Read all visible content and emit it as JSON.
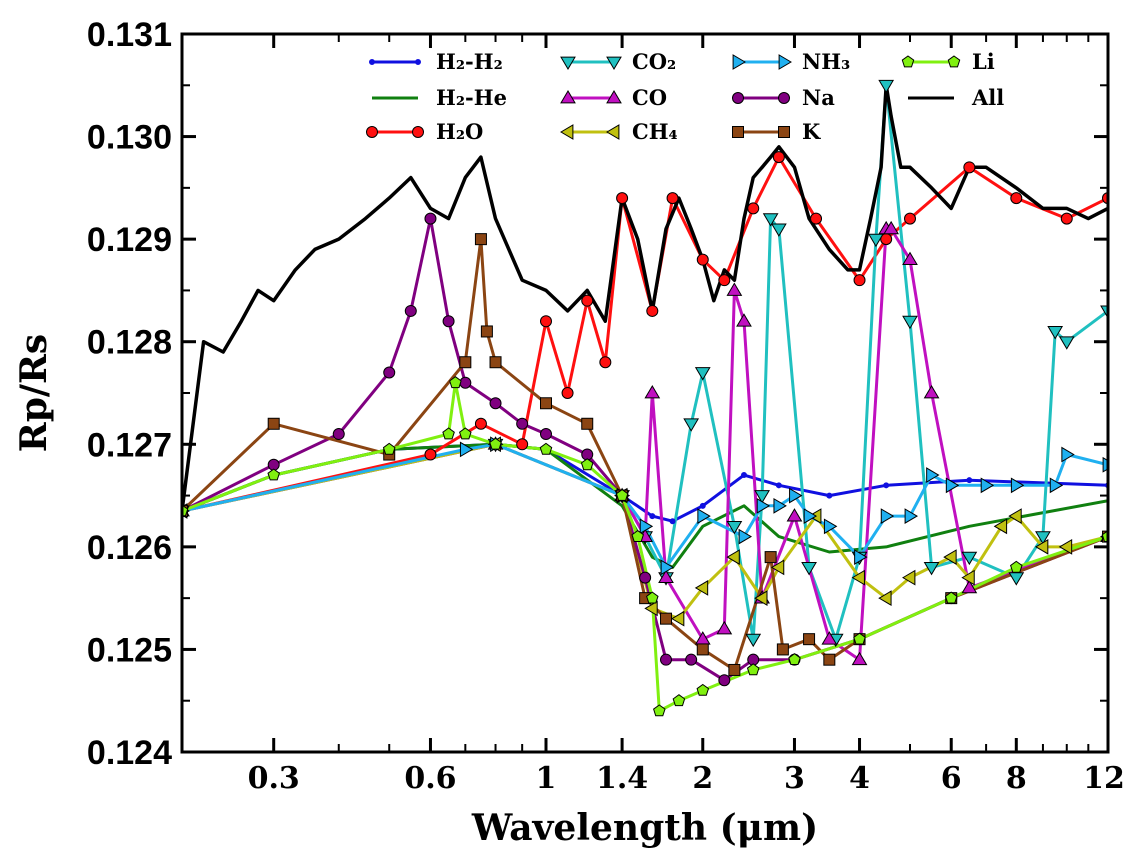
{
  "chart_data": {
    "type": "line",
    "title": "",
    "xlabel": "Wavelength (μm)",
    "ylabel": "Rp/Rs",
    "xscale": "log",
    "xlim": [
      0.2,
      12
    ],
    "ylim": [
      0.124,
      0.131
    ],
    "xticks": [
      {
        "value": 0.3,
        "label": "0.3"
      },
      {
        "value": 0.6,
        "label": "0.6"
      },
      {
        "value": 1,
        "label": "1"
      },
      {
        "value": 1.4,
        "label": "1.4"
      },
      {
        "value": 2,
        "label": "2"
      },
      {
        "value": 3,
        "label": "3"
      },
      {
        "value": 4,
        "label": "4"
      },
      {
        "value": 6,
        "label": "6"
      },
      {
        "value": 8,
        "label": "8"
      },
      {
        "value": 12,
        "label": "12"
      }
    ],
    "yticks": [
      {
        "value": 0.124,
        "label": "0.124"
      },
      {
        "value": 0.125,
        "label": "0.125"
      },
      {
        "value": 0.126,
        "label": "0.126"
      },
      {
        "value": 0.127,
        "label": "0.127"
      },
      {
        "value": 0.128,
        "label": "0.128"
      },
      {
        "value": 0.129,
        "label": "0.129"
      },
      {
        "value": 0.13,
        "label": "0.130"
      },
      {
        "value": 0.131,
        "label": "0.131"
      }
    ],
    "legend_position": "top",
    "series": [
      {
        "name": "H2-H2",
        "label": "H₂-H₂",
        "color": "#1010e0",
        "marker": "dot",
        "x": [
          0.2,
          0.3,
          0.5,
          0.8,
          1.0,
          1.4,
          1.6,
          1.75,
          2.0,
          2.4,
          2.8,
          3.5,
          4.5,
          6.5,
          12
        ],
        "y": [
          0.12635,
          0.1267,
          0.12695,
          0.127,
          0.12695,
          0.1265,
          0.1263,
          0.12625,
          0.1264,
          0.1267,
          0.1266,
          0.1265,
          0.1266,
          0.12665,
          0.1266
        ]
      },
      {
        "name": "H2-He",
        "label": "H₂-He",
        "color": "#108010",
        "marker": "none",
        "x": [
          0.2,
          0.3,
          0.5,
          0.8,
          1.0,
          1.4,
          1.6,
          1.75,
          2.0,
          2.4,
          2.8,
          3.5,
          4.5,
          6.5,
          12
        ],
        "y": [
          0.12635,
          0.1267,
          0.12695,
          0.127,
          0.12695,
          0.1264,
          0.1259,
          0.1258,
          0.1262,
          0.1264,
          0.1261,
          0.12595,
          0.126,
          0.1262,
          0.12645
        ]
      },
      {
        "name": "H2O",
        "label": "H₂O",
        "color": "#ff1010",
        "marker": "circle",
        "x": [
          0.2,
          0.6,
          0.75,
          0.9,
          1.0,
          1.1,
          1.2,
          1.3,
          1.4,
          1.6,
          1.75,
          2.0,
          2.2,
          2.5,
          2.8,
          3.3,
          4.0,
          4.5,
          5.0,
          6.5,
          8.0,
          10.0,
          12.0
        ],
        "y": [
          0.12635,
          0.1269,
          0.1272,
          0.127,
          0.1282,
          0.1275,
          0.1284,
          0.1278,
          0.1294,
          0.1283,
          0.1294,
          0.1288,
          0.1286,
          0.1293,
          0.1298,
          0.1292,
          0.1286,
          0.129,
          0.1292,
          0.1297,
          0.1294,
          0.1292,
          0.1294
        ]
      },
      {
        "name": "CO2",
        "label": "CO₂",
        "color": "#20c0c0",
        "marker": "tri-down",
        "x": [
          0.2,
          0.8,
          1.4,
          1.55,
          1.7,
          1.9,
          2.0,
          2.3,
          2.5,
          2.6,
          2.7,
          2.8,
          3.2,
          3.6,
          4.0,
          4.3,
          4.5,
          5.0,
          5.5,
          6.5,
          8.0,
          9.0,
          9.5,
          10,
          12
        ],
        "y": [
          0.12635,
          0.127,
          0.1265,
          0.1261,
          0.1257,
          0.1272,
          0.1277,
          0.1262,
          0.1251,
          0.1265,
          0.1292,
          0.1291,
          0.1258,
          0.1251,
          0.1259,
          0.129,
          0.1305,
          0.1282,
          0.1258,
          0.1259,
          0.1257,
          0.1261,
          0.1281,
          0.128,
          0.1283
        ]
      },
      {
        "name": "CO",
        "label": "CO",
        "color": "#c010c0",
        "marker": "tri-up",
        "x": [
          0.2,
          0.8,
          1.4,
          1.55,
          1.6,
          1.7,
          2.0,
          2.2,
          2.3,
          2.4,
          2.6,
          3.0,
          3.5,
          4.0,
          4.5,
          4.6,
          5.0,
          5.5,
          6.5,
          12
        ],
        "y": [
          0.12635,
          0.127,
          0.1265,
          0.1261,
          0.1275,
          0.1257,
          0.1251,
          0.1252,
          0.1285,
          0.1282,
          0.1255,
          0.1263,
          0.1251,
          0.1249,
          0.1291,
          0.1291,
          0.1288,
          0.1275,
          0.1256,
          0.1261
        ]
      },
      {
        "name": "CH4",
        "label": "CH₄",
        "color": "#c0c010",
        "marker": "tri-left",
        "x": [
          0.2,
          0.8,
          1.4,
          1.6,
          1.8,
          2.0,
          2.3,
          2.6,
          2.8,
          3.3,
          4.0,
          4.5,
          5.0,
          6.0,
          6.5,
          7.5,
          8.0,
          9.0,
          10.0,
          12.0
        ],
        "y": [
          0.12635,
          0.127,
          0.1265,
          0.1254,
          0.1253,
          0.1256,
          0.1259,
          0.1255,
          0.1258,
          0.1263,
          0.1257,
          0.1255,
          0.1257,
          0.1259,
          0.1257,
          0.1262,
          0.1263,
          0.126,
          0.126,
          0.1261
        ]
      },
      {
        "name": "NH3",
        "label": "NH₃",
        "color": "#20b0f0",
        "marker": "tri-right",
        "x": [
          0.2,
          0.7,
          0.8,
          1.4,
          1.55,
          1.7,
          2.0,
          2.4,
          2.6,
          2.8,
          3.0,
          3.2,
          3.5,
          4.0,
          4.5,
          5.0,
          5.5,
          6.0,
          7.0,
          8.0,
          9.5,
          10.0,
          12.0
        ],
        "y": [
          0.12635,
          0.12695,
          0.127,
          0.1265,
          0.1262,
          0.1258,
          0.1263,
          0.1261,
          0.1264,
          0.1264,
          0.1265,
          0.1263,
          0.1262,
          0.1259,
          0.1263,
          0.1263,
          0.1267,
          0.1266,
          0.1266,
          0.1266,
          0.1266,
          0.1269,
          0.1268
        ]
      },
      {
        "name": "Na",
        "label": "Na",
        "color": "#800080",
        "marker": "circle",
        "x": [
          0.2,
          0.3,
          0.4,
          0.5,
          0.55,
          0.6,
          0.65,
          0.7,
          0.8,
          0.9,
          1.0,
          1.2,
          1.4,
          1.55,
          1.7,
          1.9,
          2.2,
          2.5,
          3.0,
          4.0,
          6.0,
          12.0
        ],
        "y": [
          0.12635,
          0.1268,
          0.1271,
          0.1277,
          0.1283,
          0.1292,
          0.1282,
          0.1276,
          0.1274,
          0.1272,
          0.1271,
          0.1269,
          0.1265,
          0.1257,
          0.1249,
          0.1249,
          0.1247,
          0.1249,
          0.1249,
          0.1251,
          0.1255,
          0.1261
        ]
      },
      {
        "name": "K",
        "label": "K",
        "color": "#8b4513",
        "marker": "square",
        "x": [
          0.2,
          0.3,
          0.5,
          0.7,
          0.75,
          0.77,
          0.8,
          1.0,
          1.2,
          1.4,
          1.55,
          1.7,
          2.0,
          2.3,
          2.7,
          2.85,
          3.2,
          3.5,
          4.0,
          6.0,
          12.0
        ],
        "y": [
          0.12635,
          0.1272,
          0.1269,
          0.1278,
          0.129,
          0.1281,
          0.1278,
          0.1274,
          0.1272,
          0.1265,
          0.1255,
          0.1253,
          0.125,
          0.1248,
          0.1259,
          0.125,
          0.1251,
          0.1249,
          0.1251,
          0.1255,
          0.1261
        ]
      },
      {
        "name": "Li",
        "label": "Li",
        "color": "#80f010",
        "marker": "pentagon",
        "x": [
          0.2,
          0.3,
          0.5,
          0.65,
          0.67,
          0.7,
          0.8,
          1.0,
          1.2,
          1.4,
          1.5,
          1.6,
          1.65,
          1.8,
          2.0,
          2.5,
          3.0,
          4.0,
          6.0,
          8.0,
          12.0
        ],
        "y": [
          0.12635,
          0.1267,
          0.12695,
          0.1271,
          0.1276,
          0.1271,
          0.127,
          0.12695,
          0.1268,
          0.1265,
          0.1261,
          0.1255,
          0.1244,
          0.1245,
          0.1246,
          0.1248,
          0.1249,
          0.1251,
          0.1255,
          0.1258,
          0.1261
        ]
      },
      {
        "name": "All",
        "label": "All",
        "color": "#000000",
        "marker": "none",
        "x": [
          0.2,
          0.22,
          0.24,
          0.26,
          0.28,
          0.3,
          0.33,
          0.36,
          0.4,
          0.45,
          0.5,
          0.55,
          0.6,
          0.65,
          0.7,
          0.75,
          0.8,
          0.9,
          1.0,
          1.1,
          1.2,
          1.3,
          1.4,
          1.5,
          1.6,
          1.7,
          1.8,
          1.9,
          2.0,
          2.1,
          2.2,
          2.3,
          2.4,
          2.5,
          2.6,
          2.7,
          2.8,
          3.0,
          3.2,
          3.5,
          3.8,
          4.0,
          4.2,
          4.4,
          4.5,
          4.6,
          4.8,
          5.0,
          5.5,
          6.0,
          6.5,
          7.0,
          8.0,
          9.0,
          10.0,
          11.0,
          12.0
        ],
        "y": [
          0.12635,
          0.128,
          0.1279,
          0.1282,
          0.1285,
          0.1284,
          0.1287,
          0.1289,
          0.129,
          0.1292,
          0.1294,
          0.1296,
          0.1293,
          0.1292,
          0.1296,
          0.1298,
          0.1292,
          0.1286,
          0.1285,
          0.1283,
          0.1285,
          0.1282,
          0.1294,
          0.129,
          0.1283,
          0.1291,
          0.1294,
          0.1291,
          0.1288,
          0.1284,
          0.1287,
          0.1286,
          0.1292,
          0.1296,
          0.1297,
          0.1298,
          0.1299,
          0.1297,
          0.1292,
          0.1289,
          0.1287,
          0.1287,
          0.1292,
          0.1297,
          0.1305,
          0.1302,
          0.1297,
          0.1297,
          0.1295,
          0.1293,
          0.1297,
          0.1297,
          0.1295,
          0.1293,
          0.1293,
          0.1292,
          0.1293
        ]
      }
    ]
  }
}
